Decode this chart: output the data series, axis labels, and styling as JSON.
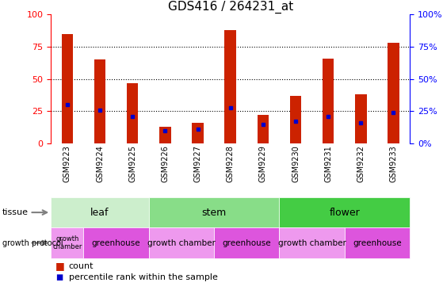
{
  "title": "GDS416 / 264231_at",
  "samples": [
    "GSM9223",
    "GSM9224",
    "GSM9225",
    "GSM9226",
    "GSM9227",
    "GSM9228",
    "GSM9229",
    "GSM9230",
    "GSM9231",
    "GSM9232",
    "GSM9233"
  ],
  "counts": [
    85,
    65,
    47,
    13,
    16,
    88,
    22,
    37,
    66,
    38,
    78
  ],
  "percentiles": [
    30,
    26,
    21,
    10,
    11,
    28,
    15,
    17,
    21,
    16,
    24
  ],
  "tissue_groups": [
    {
      "label": "leaf",
      "start": 0,
      "end": 3,
      "color": "#cceecc"
    },
    {
      "label": "stem",
      "start": 3,
      "end": 7,
      "color": "#88dd88"
    },
    {
      "label": "flower",
      "start": 7,
      "end": 11,
      "color": "#44cc44"
    }
  ],
  "growth_protocol_groups": [
    {
      "label": "growth\nchamber",
      "start": 0,
      "end": 1,
      "color": "#ee99ee",
      "small": true
    },
    {
      "label": "greenhouse",
      "start": 1,
      "end": 3,
      "color": "#dd55dd",
      "small": false
    },
    {
      "label": "growth chamber",
      "start": 3,
      "end": 5,
      "color": "#ee99ee",
      "small": false
    },
    {
      "label": "greenhouse",
      "start": 5,
      "end": 7,
      "color": "#dd55dd",
      "small": false
    },
    {
      "label": "growth chamber",
      "start": 7,
      "end": 9,
      "color": "#ee99ee",
      "small": false
    },
    {
      "label": "greenhouse",
      "start": 9,
      "end": 11,
      "color": "#dd55dd",
      "small": false
    }
  ],
  "bar_color": "#cc2200",
  "dot_color": "#0000cc",
  "ylim": [
    0,
    100
  ],
  "grid_ticks": [
    25,
    50,
    75
  ],
  "yticks": [
    0,
    25,
    50,
    75,
    100
  ],
  "bar_width": 0.35,
  "legend_count_label": "count",
  "legend_pct_label": "percentile rank within the sample"
}
